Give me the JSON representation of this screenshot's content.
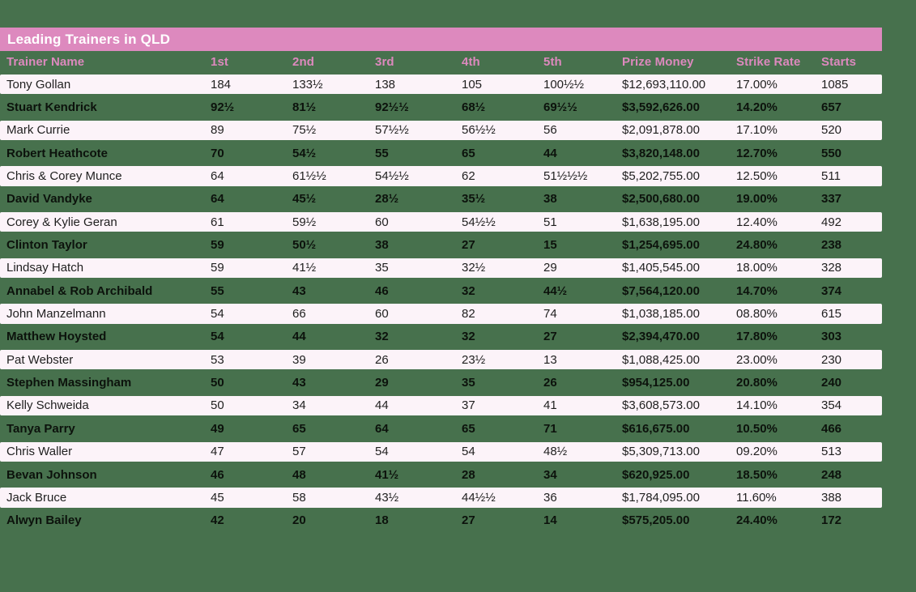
{
  "title": "Leading Trainers in QLD",
  "colors": {
    "background_green": "#47714d",
    "bar_pink": "#dd89be",
    "header_text_pink": "#dd89be",
    "row_white": "#fcf3f9",
    "row_text_regular": "#1f1f1f",
    "row_text_bold": "#0c120c",
    "title_text": "#ffffff"
  },
  "chart_data": {
    "type": "table",
    "title": "Leading Trainers in QLD",
    "columns": [
      "Trainer Name",
      "1st",
      "2nd",
      "3rd",
      "4th",
      "5th",
      "Prize Money",
      "Strike Rate",
      "Starts"
    ],
    "rows": [
      [
        "Tony Gollan",
        "184",
        "133½",
        "138",
        "105",
        "100½½",
        "$12,693,110.00",
        "17.00%",
        "1085"
      ],
      [
        "Stuart Kendrick",
        "92½",
        "81½",
        "92½½",
        "68½",
        "69½½",
        "$3,592,626.00",
        "14.20%",
        "657"
      ],
      [
        "Mark Currie",
        "89",
        "75½",
        "57½½",
        "56½½",
        "56",
        "$2,091,878.00",
        "17.10%",
        "520"
      ],
      [
        "Robert Heathcote",
        "70",
        "54½",
        "55",
        "65",
        "44",
        "$3,820,148.00",
        "12.70%",
        "550"
      ],
      [
        "Chris & Corey Munce",
        "64",
        "61½½",
        "54½½",
        "62",
        "51½½½",
        "$5,202,755.00",
        "12.50%",
        "511"
      ],
      [
        "David Vandyke",
        "64",
        "45½",
        "28½",
        "35½",
        "38",
        "$2,500,680.00",
        "19.00%",
        "337"
      ],
      [
        "Corey & Kylie Geran",
        "61",
        "59½",
        "60",
        "54½½",
        "51",
        "$1,638,195.00",
        "12.40%",
        "492"
      ],
      [
        "Clinton Taylor",
        "59",
        "50½",
        "38",
        "27",
        "15",
        "$1,254,695.00",
        "24.80%",
        "238"
      ],
      [
        "Lindsay Hatch",
        "59",
        "41½",
        "35",
        "32½",
        "29",
        "$1,405,545.00",
        "18.00%",
        "328"
      ],
      [
        "Annabel & Rob Archibald",
        "55",
        "43",
        "46",
        "32",
        "44½",
        "$7,564,120.00",
        "14.70%",
        "374"
      ],
      [
        "John Manzelmann",
        "54",
        "66",
        "60",
        "82",
        "74",
        "$1,038,185.00",
        "08.80%",
        "615"
      ],
      [
        "Matthew Hoysted",
        "54",
        "44",
        "32",
        "32",
        "27",
        "$2,394,470.00",
        "17.80%",
        "303"
      ],
      [
        "Pat Webster",
        "53",
        "39",
        "26",
        "23½",
        "13",
        "$1,088,425.00",
        "23.00%",
        "230"
      ],
      [
        "Stephen Massingham",
        "50",
        "43",
        "29",
        "35",
        "26",
        "$954,125.00",
        "20.80%",
        "240"
      ],
      [
        "Kelly Schweida",
        "50",
        "34",
        "44",
        "37",
        "41",
        "$3,608,573.00",
        "14.10%",
        "354"
      ],
      [
        "Tanya Parry",
        "49",
        "65",
        "64",
        "65",
        "71",
        "$616,675.00",
        "10.50%",
        "466"
      ],
      [
        "Chris Waller",
        "47",
        "57",
        "54",
        "54",
        "48½",
        "$5,309,713.00",
        "09.20%",
        "513"
      ],
      [
        "Bevan Johnson",
        "46",
        "48",
        "41½",
        "28",
        "34",
        "$620,925.00",
        "18.50%",
        "248"
      ],
      [
        "Jack Bruce",
        "45",
        "58",
        "43½",
        "44½½",
        "36",
        "$1,784,095.00",
        "11.60%",
        "388"
      ],
      [
        "Alwyn Bailey",
        "42",
        "20",
        "18",
        "27",
        "14",
        "$575,205.00",
        "24.40%",
        "172"
      ]
    ]
  }
}
